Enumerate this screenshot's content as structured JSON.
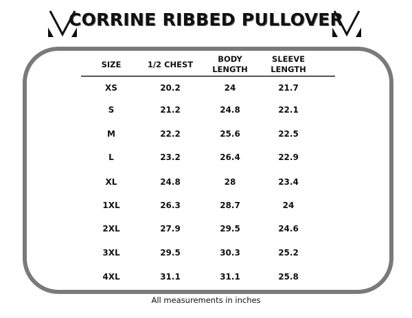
{
  "title": "CORRINE RIBBED PULLOVER",
  "logo_icon": "v-logo-icon",
  "columns": [
    "SIZE",
    "1/2 CHEST",
    "BODY\nLENGTH",
    "SLEEVE\nLENGTH"
  ],
  "rows": [
    [
      "XS",
      "20.2",
      "24",
      "21.7"
    ],
    [
      "S",
      "21.2",
      "24.8",
      "22.1"
    ],
    [
      "M",
      "22.2",
      "25.6",
      "22.5"
    ],
    [
      "L",
      "23.2",
      "26.4",
      "22.9"
    ],
    [
      "XL",
      "24.8",
      "28",
      "23.4"
    ],
    [
      "1XL",
      "26.3",
      "28.7",
      "24"
    ],
    [
      "2XL",
      "27.9",
      "29.5",
      "24.6"
    ],
    [
      "3XL",
      "29.5",
      "30.3",
      "25.2"
    ],
    [
      "4XL",
      "31.1",
      "31.1",
      "25.8"
    ]
  ],
  "footer": "All measurements in inches",
  "colors": {
    "frame": "#7a7a7a",
    "text": "#111111"
  }
}
